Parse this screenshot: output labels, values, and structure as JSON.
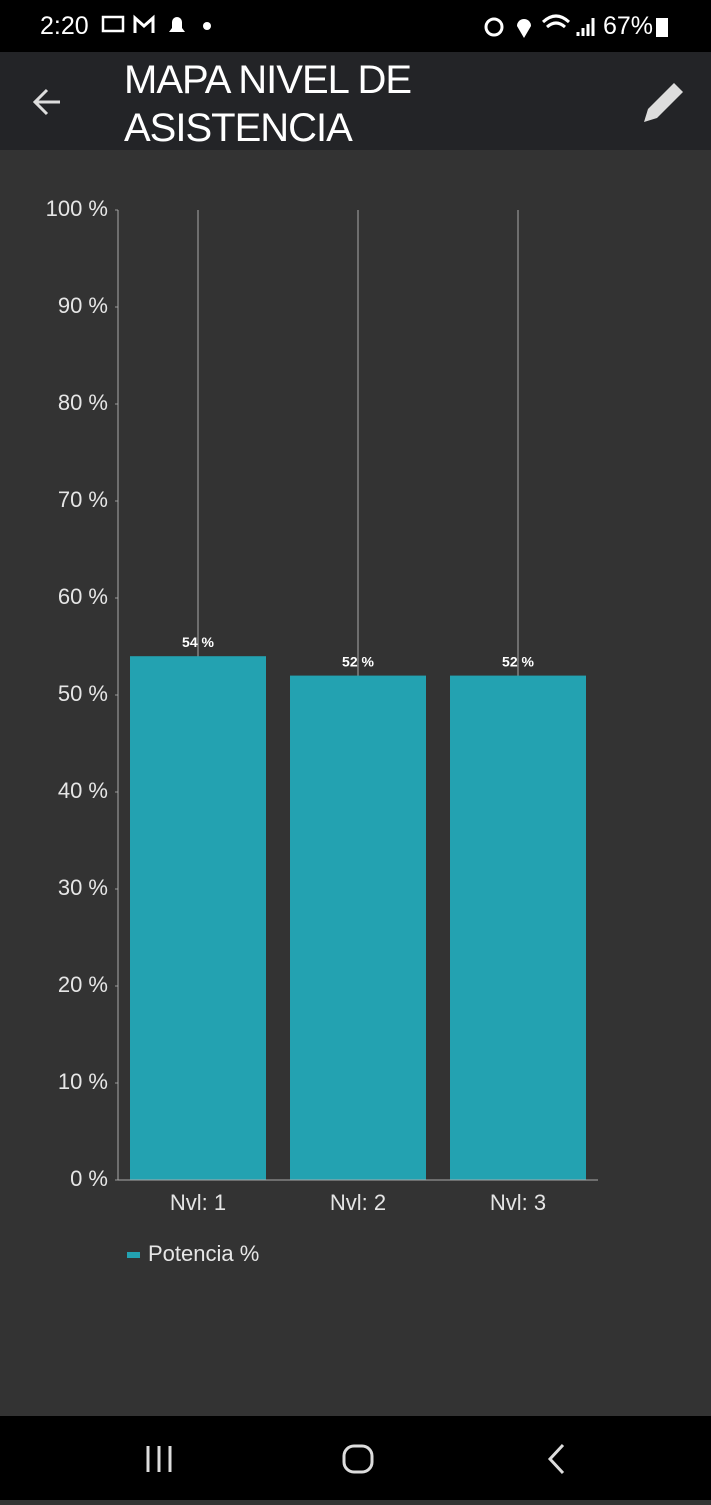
{
  "status_bar": {
    "time": "2:20",
    "battery": "67%"
  },
  "app_bar": {
    "title": "MAPA NIVEL DE ASISTENCIA"
  },
  "chart_data": {
    "type": "bar",
    "categories": [
      "Nvl: 1",
      "Nvl: 2",
      "Nvl: 3"
    ],
    "series": [
      {
        "name": "Potencia %",
        "color": "#23a2b1",
        "values": [
          54,
          52,
          52
        ],
        "value_labels": [
          "54 %",
          "52 %",
          "52 %"
        ]
      }
    ],
    "ylim": [
      0,
      100
    ],
    "yticks": [
      {
        "value": 0,
        "label": "0 %"
      },
      {
        "value": 10,
        "label": "10 %"
      },
      {
        "value": 20,
        "label": "20 %"
      },
      {
        "value": 30,
        "label": "30 %"
      },
      {
        "value": 40,
        "label": "40 %"
      },
      {
        "value": 50,
        "label": "50 %"
      },
      {
        "value": 60,
        "label": "60 %"
      },
      {
        "value": 70,
        "label": "70 %"
      },
      {
        "value": 80,
        "label": "80 %"
      },
      {
        "value": 90,
        "label": "90 %"
      },
      {
        "value": 100,
        "label": "100 %"
      }
    ],
    "legend": "bottom-left"
  }
}
